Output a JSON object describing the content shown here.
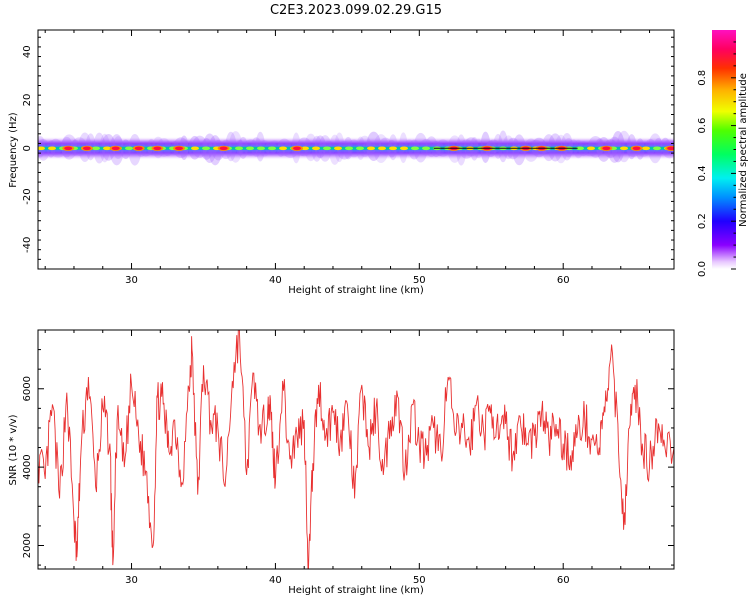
{
  "title": "C2E3.2023.099.02.29.G15",
  "colors": {
    "axis": "#000000",
    "snr_line": "#e83030",
    "background": "#ffffff"
  },
  "chart_data": [
    {
      "type": "heatmap",
      "name": "spectrogram",
      "xlabel": "Height of straight line (km)",
      "ylabel": "Frequency (Hz)",
      "xlim": [
        23.5,
        67.7
      ],
      "ylim": [
        -50,
        49
      ],
      "xticks": [
        "30",
        "40",
        "50",
        "60"
      ],
      "yticks": [
        "40",
        "20",
        "0",
        "-20",
        "-40"
      ],
      "grid": false,
      "description_values": {
        "band_center_hz": 0,
        "band_halfwidth_hz": 3,
        "dominant_ridge_x_km": [
          25.6,
          26.9,
          28.9,
          30.5,
          31.8,
          33.3,
          36.4,
          41.5,
          52.4,
          54.7,
          57.4,
          58.5,
          59.9,
          63.0,
          65.1,
          67.5
        ]
      }
    },
    {
      "type": "colorbar",
      "name": "colorbar",
      "label": "Normalized spectral amplitude",
      "range": [
        0.0,
        1.0
      ],
      "ticks": [
        "0.0",
        "0.2",
        "0.4",
        "0.6",
        "0.8"
      ],
      "colormap": "gist_ncar-like: white → purple → blue → cyan → green → yellow → orange → red → magenta"
    },
    {
      "type": "line",
      "name": "snr",
      "xlabel": "Height of straight line (km)",
      "ylabel": "SNR (10 * v/v)",
      "xlim": [
        23.5,
        67.7
      ],
      "ylim": [
        1400,
        7500
      ],
      "xticks": [
        "30",
        "40",
        "50",
        "60"
      ],
      "yticks": [
        "2000",
        "4000",
        "6000"
      ],
      "grid": false,
      "series": [
        {
          "x": [
            23.5,
            24.0,
            24.5,
            25.0,
            25.5,
            26.0,
            26.2,
            26.5,
            27.0,
            27.5,
            28.0,
            28.5,
            28.7,
            29.0,
            29.5,
            30.0,
            30.5,
            31.0,
            31.5,
            31.8,
            32.2,
            32.6,
            33.0,
            33.5,
            34.0,
            34.2,
            34.6,
            35.0,
            35.5,
            36.0,
            36.5,
            37.0,
            37.5,
            38.0,
            38.5,
            39.0,
            39.5,
            39.7,
            40.0,
            40.5,
            41.0,
            41.5,
            42.0,
            42.3,
            42.6,
            43.0,
            43.5,
            44.0,
            44.5,
            45.0,
            45.5,
            46.0,
            46.5,
            47.0,
            47.5,
            48.0,
            48.5,
            49.0,
            49.5,
            50.0,
            50.5,
            51.0,
            51.5,
            52.0,
            52.5,
            53.0,
            53.5,
            54.0,
            54.5,
            55.0,
            55.5,
            56.0,
            56.5,
            57.0,
            57.5,
            58.0,
            58.5,
            59.0,
            59.5,
            60.0,
            60.5,
            61.0,
            61.5,
            62.0,
            62.5,
            62.9,
            63.3,
            63.8,
            64.2,
            64.6,
            65.0,
            65.5,
            66.0,
            66.5,
            67.0,
            67.7
          ],
          "y": [
            4200,
            3700,
            5600,
            3200,
            5900,
            2600,
            1700,
            4500,
            6300,
            3500,
            5500,
            4600,
            1500,
            5200,
            4000,
            6100,
            4800,
            3900,
            2000,
            5800,
            5600,
            4400,
            5200,
            3600,
            6000,
            7000,
            3300,
            6600,
            5200,
            5000,
            3500,
            6200,
            7500,
            3800,
            6400,
            4600,
            5800,
            5200,
            3600,
            6200,
            4200,
            4800,
            5200,
            1400,
            4100,
            6100,
            4800,
            5400,
            4700,
            5600,
            3200,
            6100,
            4500,
            5500,
            3800,
            5200,
            5800,
            3900,
            5600,
            4600,
            4300,
            5000,
            4400,
            6300,
            4800,
            5000,
            4500,
            5700,
            4800,
            5600,
            4700,
            5100,
            4300,
            5300,
            4600,
            4800,
            5400,
            4700,
            5100,
            4600,
            4300,
            4900,
            5200,
            4700,
            4500,
            5400,
            6800,
            5100,
            2400,
            5000,
            6100,
            4600,
            4000,
            5200,
            4700,
            4500
          ]
        }
      ]
    }
  ]
}
